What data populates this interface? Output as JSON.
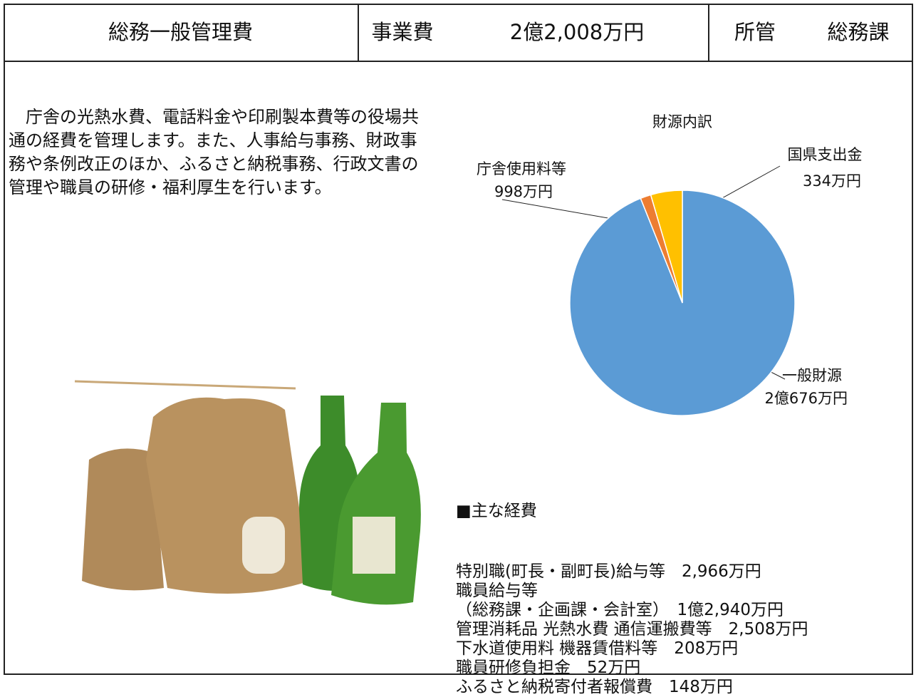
{
  "header": {
    "title": "総務一般管理費",
    "cost_label": "事業費",
    "cost": "2億2,008万円",
    "dept_label": "所管",
    "dept": "総務課"
  },
  "description": "庁舎の光熱水費、電話料金や印刷製本費等の役場共通の経費を管理します。また、人事給与事務、財政事務や条例改正のほか、ふるさと納税事務、行政文書の管理や職員の研修・福利厚生を行います。",
  "chart_data": {
    "type": "pie",
    "title": "財源内訳",
    "categories": [
      "一般財源",
      "国県支出金",
      "庁舎使用料等"
    ],
    "values": [
      20676,
      334,
      998
    ],
    "value_labels": [
      "2億676万円",
      "334万円",
      "998万円"
    ],
    "colors": [
      "#5b9bd5",
      "#ed7d31",
      "#ffc000"
    ]
  },
  "expenses": {
    "heading": "■主な経費",
    "lines": [
      "特別職(町長・副町長)給与等　2,966万円",
      "職員給与等",
      "（総務課・企画課・会計室）　1億2,940万円",
      "管理消耗品 光熱水費 通信運搬費等　2,508万円",
      "下水道使用料 機器賃借料等　208万円",
      "職員研修負担金　52万円",
      "ふるさと納税寄付者報償費　148万円"
    ]
  }
}
